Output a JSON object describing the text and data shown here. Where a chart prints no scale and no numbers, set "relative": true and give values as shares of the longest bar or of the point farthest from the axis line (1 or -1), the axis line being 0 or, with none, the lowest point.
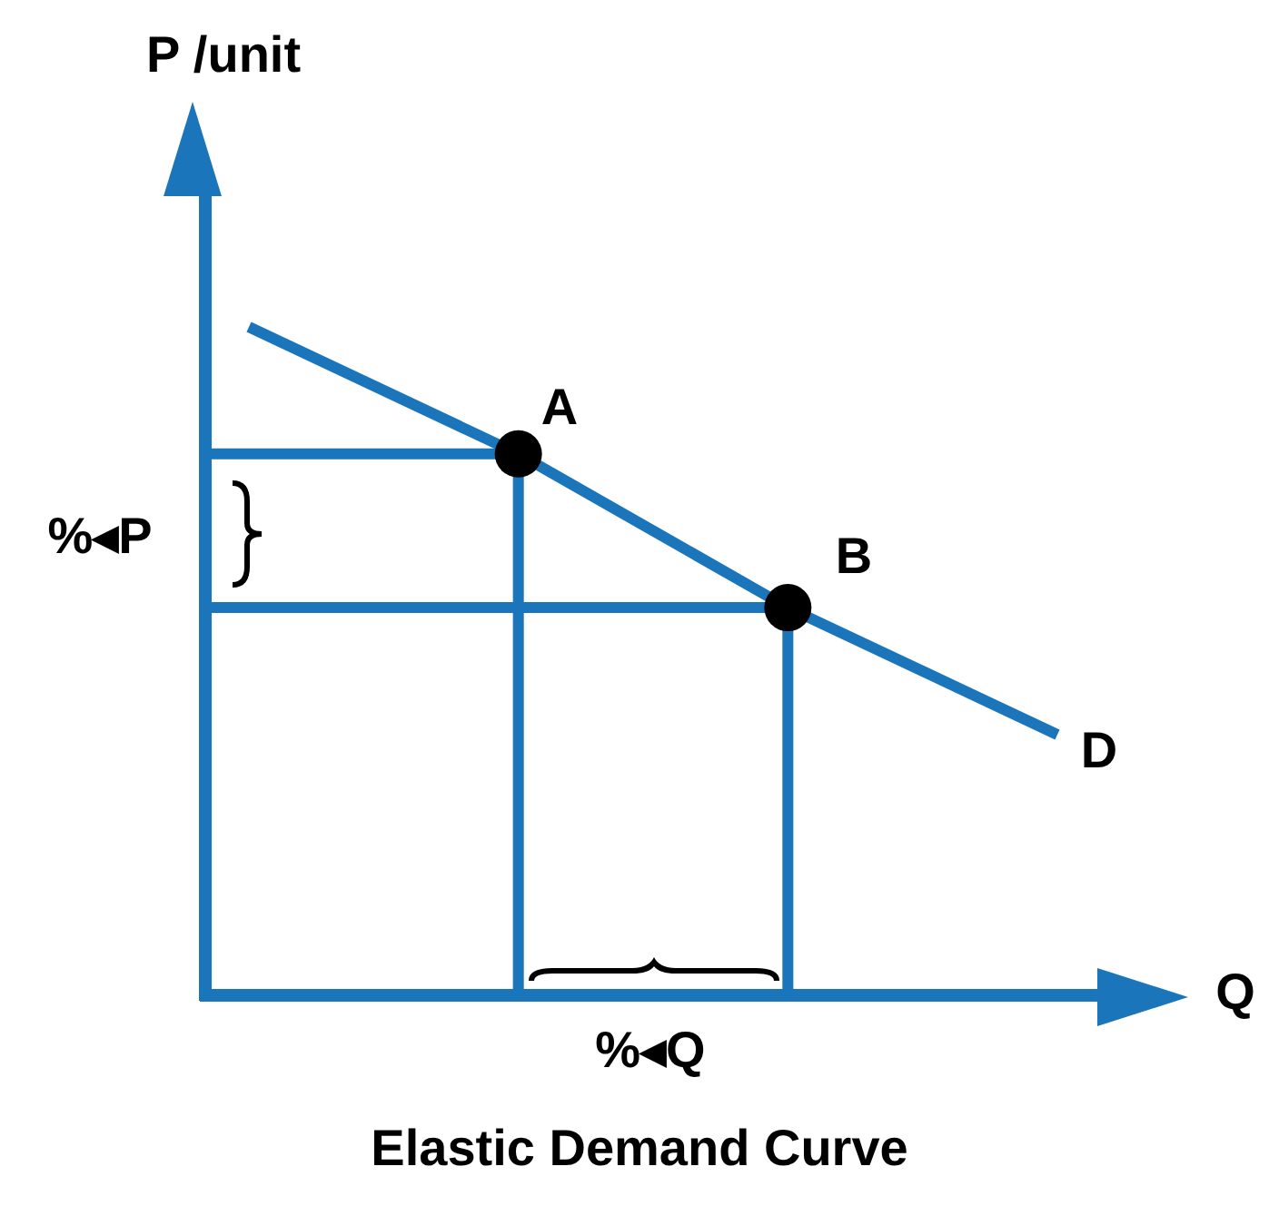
{
  "chart_data": {
    "type": "line",
    "title": "Elastic Demand Curve",
    "xlabel": "Q",
    "ylabel": "P /unit",
    "relative": true,
    "categories": [
      null,
      null,
      null,
      null
    ],
    "series": [
      {
        "color": "#1a75bb",
        "values": [
          1,
          0.81,
          0.58,
          0.39
        ]
      }
    ],
    "annotations": [
      "A",
      "B",
      "D",
      "%◂P",
      "%◂Q"
    ]
  }
}
